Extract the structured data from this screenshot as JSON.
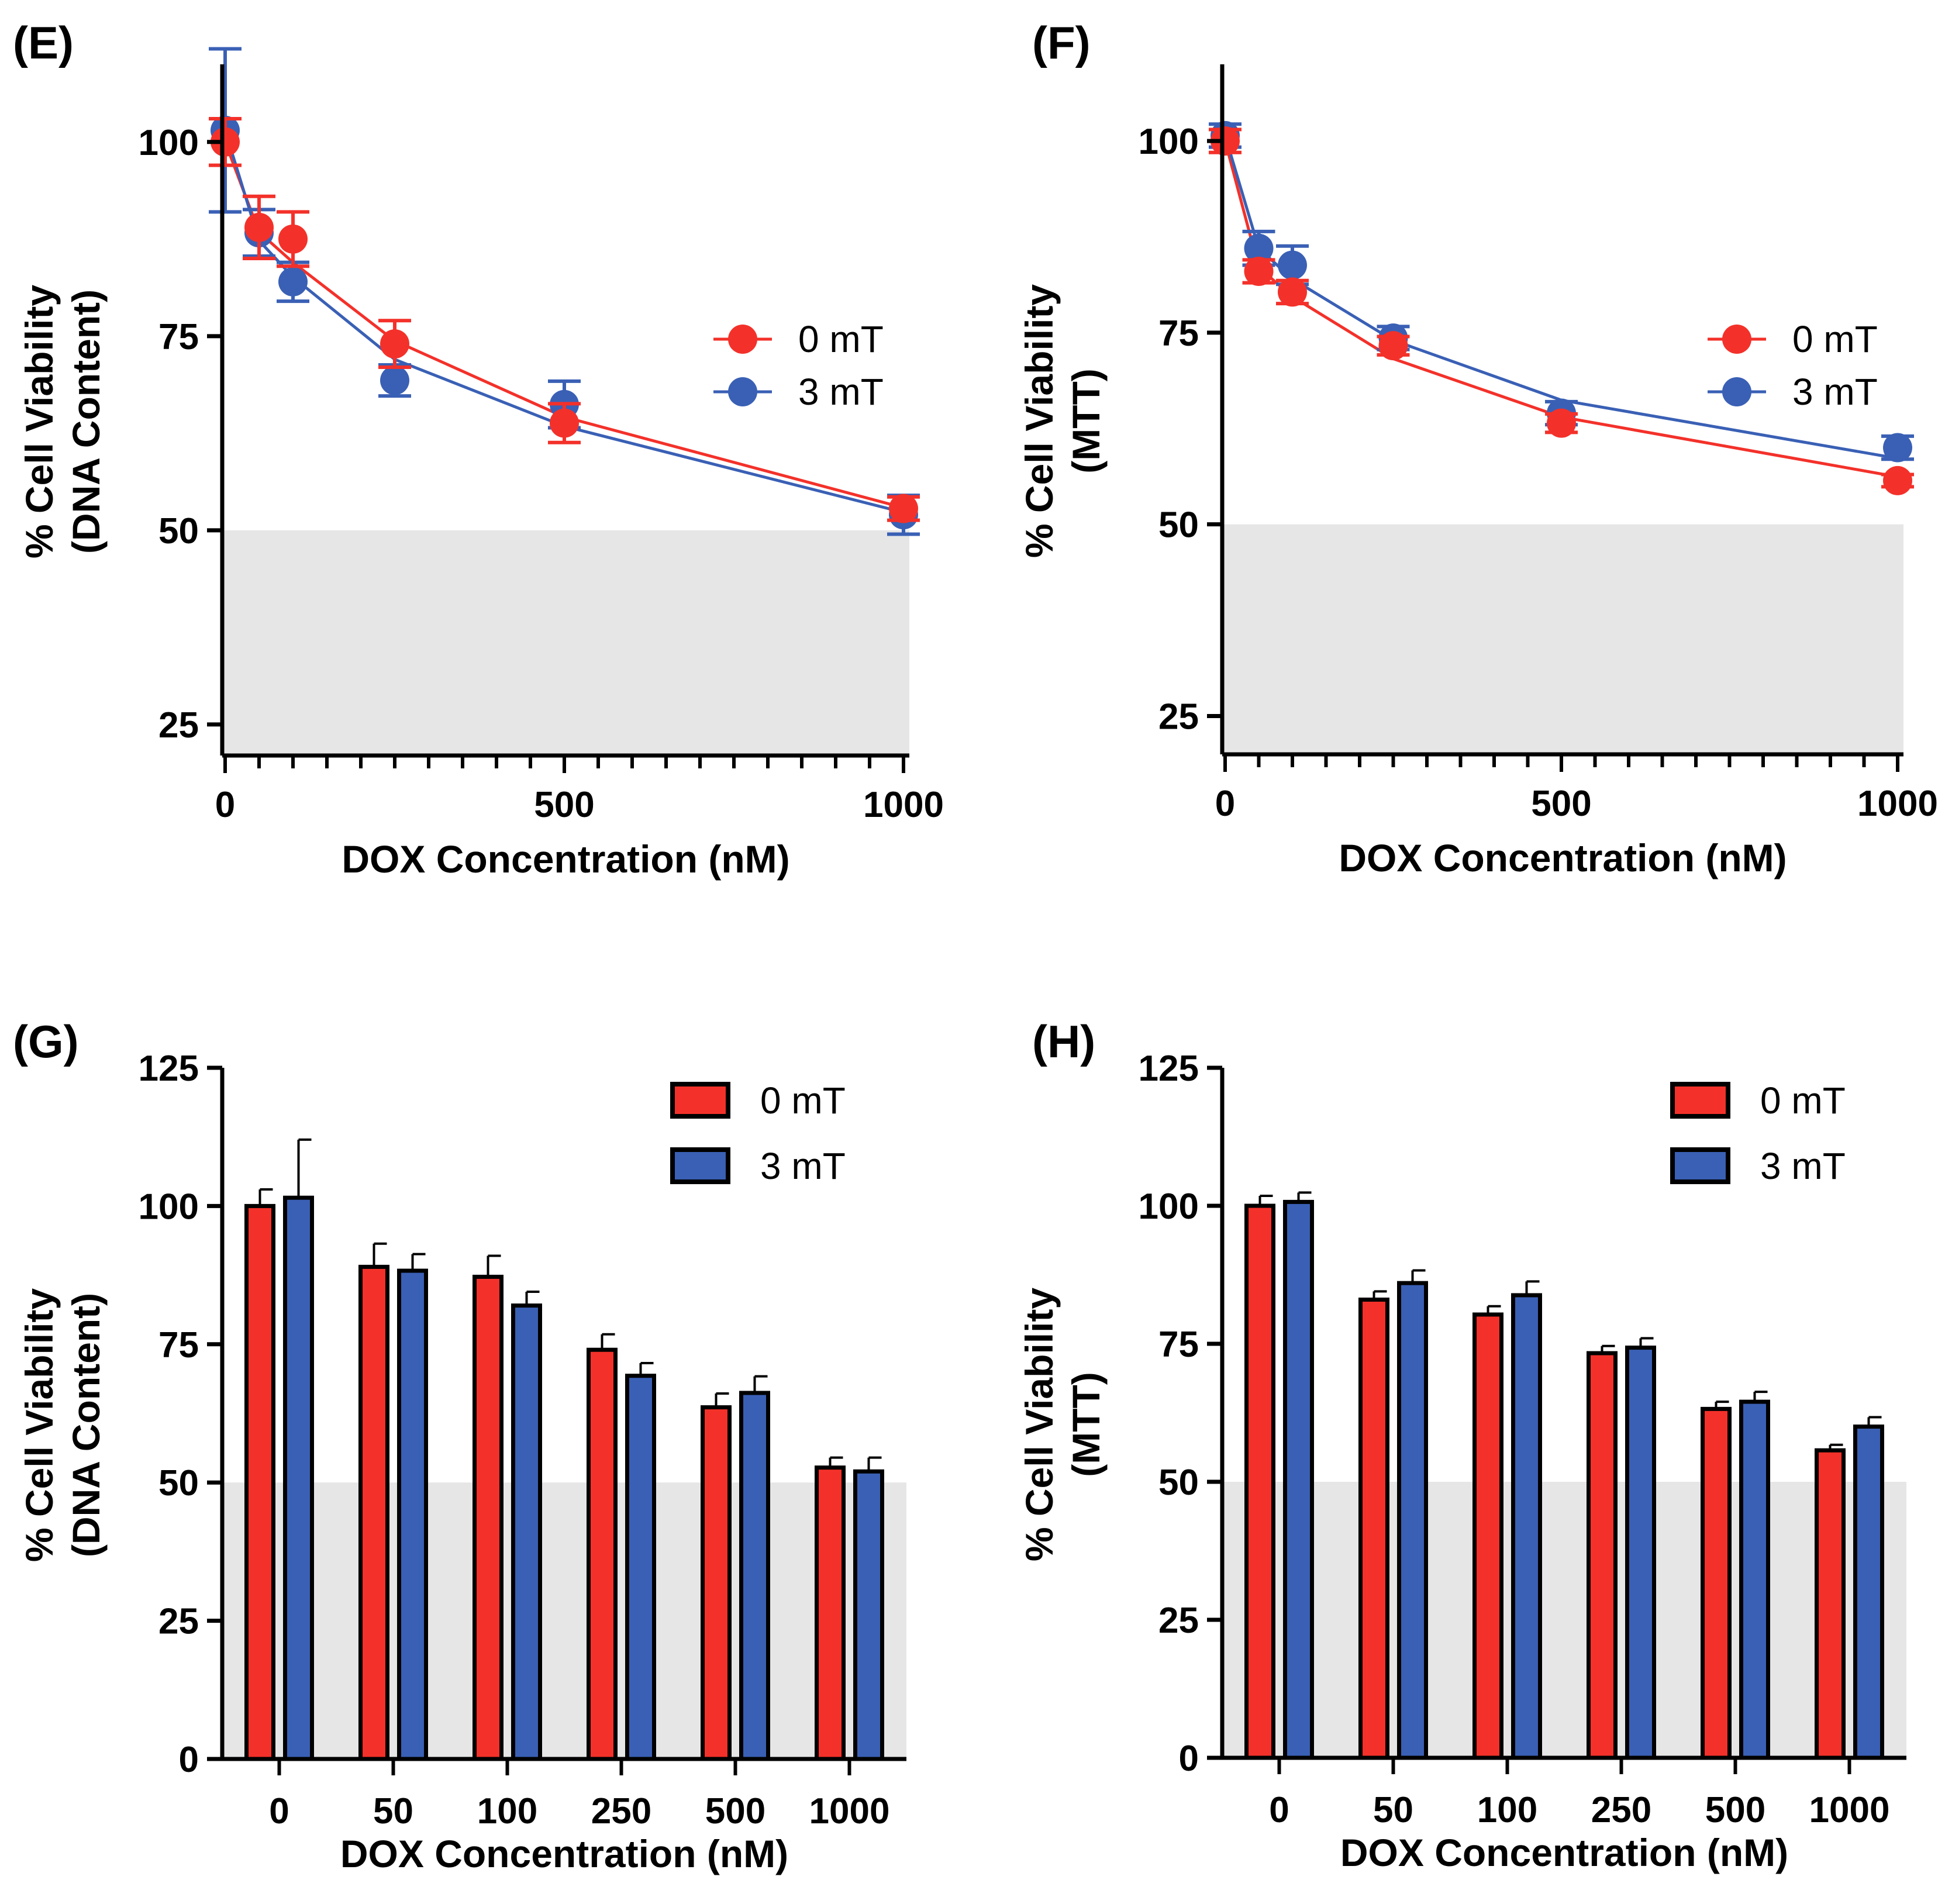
{
  "figure": {
    "description_panels": [
      "E",
      "F",
      "G",
      "H"
    ],
    "colors": {
      "red": "#f3312a",
      "blue": "#3a60b5",
      "shade": "#e6e6e6",
      "axis": "#000000"
    }
  },
  "chart_data": [
    {
      "panel_label": "(E)",
      "type": "scatter",
      "fit": "curve",
      "title": "",
      "xlabel": "DOX Concentration (nM)",
      "ylabel_line1": "% Cell Viability",
      "ylabel_line2": "(DNA Content)",
      "xlim": [
        0,
        1000
      ],
      "ylim": [
        21,
        110
      ],
      "xticks": [
        0,
        500,
        1000
      ],
      "xtick_labels": [
        "0",
        "500",
        "1000"
      ],
      "xminor_step": 50,
      "yticks": [
        25,
        50,
        75,
        100
      ],
      "ytick_labels": [
        "25",
        "50",
        "75",
        "100"
      ],
      "shaded_region": [
        21,
        50
      ],
      "legend": [
        "0 mT",
        "3 mT"
      ],
      "legend_position": "right-middle",
      "series": [
        {
          "name": "0 mT",
          "color": "red",
          "x": [
            0,
            50,
            100,
            250,
            500,
            1000
          ],
          "y": [
            100,
            89,
            87.5,
            74,
            63.8,
            52.8
          ],
          "err": [
            3,
            4,
            3.5,
            3,
            2.5,
            1.5
          ],
          "fit_y": [
            100,
            88.4,
            84.5,
            74.4,
            64.6,
            52.9
          ]
        },
        {
          "name": "3 mT",
          "color": "blue",
          "x": [
            0,
            50,
            100,
            250,
            500,
            1000
          ],
          "y": [
            101.5,
            88.3,
            82,
            69.3,
            66.2,
            52
          ],
          "err": [
            10.5,
            3,
            2.5,
            2,
            3,
            2.5
          ],
          "fit_y": [
            101.5,
            87.3,
            82.6,
            72,
            63.4,
            52.3
          ]
        }
      ]
    },
    {
      "panel_label": "(F)",
      "type": "scatter",
      "fit": "curve",
      "title": "",
      "xlabel": "DOX Concentration (nM)",
      "ylabel_line1": "% Cell Viability",
      "ylabel_line2": "(MTT)",
      "xlim": [
        0,
        1000
      ],
      "ylim": [
        20,
        110
      ],
      "xticks": [
        0,
        500,
        1000
      ],
      "xtick_labels": [
        "0",
        "500",
        "1000"
      ],
      "xminor_step": 50,
      "yticks": [
        25,
        50,
        75,
        100
      ],
      "ytick_labels": [
        "25",
        "50",
        "75",
        "100"
      ],
      "shaded_region": [
        20,
        50
      ],
      "legend": [
        "0 mT",
        "3 mT"
      ],
      "legend_position": "right-middle",
      "series": [
        {
          "name": "0 mT",
          "color": "red",
          "x": [
            0,
            50,
            100,
            250,
            500,
            1000
          ],
          "y": [
            100,
            83,
            80.3,
            73.3,
            63.2,
            55.7
          ],
          "err": [
            1.5,
            1.5,
            1.5,
            1.2,
            1.2,
            0.8
          ],
          "fit_y": [
            100,
            83.5,
            79.7,
            71.6,
            64,
            56.2
          ]
        },
        {
          "name": "3 mT",
          "color": "blue",
          "x": [
            0,
            50,
            100,
            250,
            500,
            1000
          ],
          "y": [
            100.7,
            86,
            83.8,
            74.3,
            64.5,
            60
          ],
          "err": [
            1.5,
            2.2,
            2.5,
            1.5,
            1.5,
            1.5
          ],
          "fit_y": [
            100.7,
            86,
            82,
            74,
            66.2,
            58.6
          ]
        }
      ]
    },
    {
      "panel_label": "(G)",
      "type": "bar",
      "title": "",
      "xlabel": "DOX Concentration (nM)",
      "ylabel_line1": "% Cell Viability",
      "ylabel_line2": "(DNA Content)",
      "categories": [
        "0",
        "50",
        "100",
        "250",
        "500",
        "1000"
      ],
      "ylim": [
        0,
        125
      ],
      "yticks": [
        0,
        25,
        50,
        75,
        100,
        125
      ],
      "ytick_labels": [
        "0",
        "25",
        "50",
        "75",
        "100",
        "125"
      ],
      "shaded_region": [
        0,
        50
      ],
      "legend": [
        "0 mT",
        "3 mT"
      ],
      "legend_position": "top-right",
      "series": [
        {
          "name": "0 mT",
          "color": "red",
          "values": [
            100,
            89,
            87.2,
            74,
            63.6,
            52.7
          ],
          "err": [
            3,
            4.2,
            3.8,
            2.8,
            2.5,
            1.8
          ]
        },
        {
          "name": "3 mT",
          "color": "blue",
          "values": [
            101.5,
            88.3,
            82,
            69.3,
            66.2,
            52
          ],
          "err": [
            10.5,
            3,
            2.5,
            2.3,
            3,
            2.5
          ]
        }
      ]
    },
    {
      "panel_label": "(H)",
      "type": "bar",
      "title": "",
      "xlabel": "DOX Concentration (nM)",
      "ylabel_line1": "% Cell Viability",
      "ylabel_line2": "(MTT)",
      "categories": [
        "0",
        "50",
        "100",
        "250",
        "500",
        "1000"
      ],
      "ylim": [
        0,
        125
      ],
      "yticks": [
        0,
        25,
        50,
        75,
        100,
        125
      ],
      "ytick_labels": [
        "0",
        "25",
        "50",
        "75",
        "100",
        "125"
      ],
      "shaded_region": [
        0,
        50
      ],
      "legend": [
        "0 mT",
        "3 mT"
      ],
      "legend_position": "top-right",
      "series": [
        {
          "name": "0 mT",
          "color": "red",
          "values": [
            100,
            83,
            80.3,
            73.3,
            63.2,
            55.7
          ],
          "err": [
            1.8,
            1.5,
            1.5,
            1.3,
            1.3,
            1
          ]
        },
        {
          "name": "3 mT",
          "color": "blue",
          "values": [
            100.7,
            86,
            83.8,
            74.3,
            64.5,
            60
          ],
          "err": [
            1.7,
            2.3,
            2.5,
            1.7,
            1.8,
            1.7
          ]
        }
      ]
    }
  ]
}
